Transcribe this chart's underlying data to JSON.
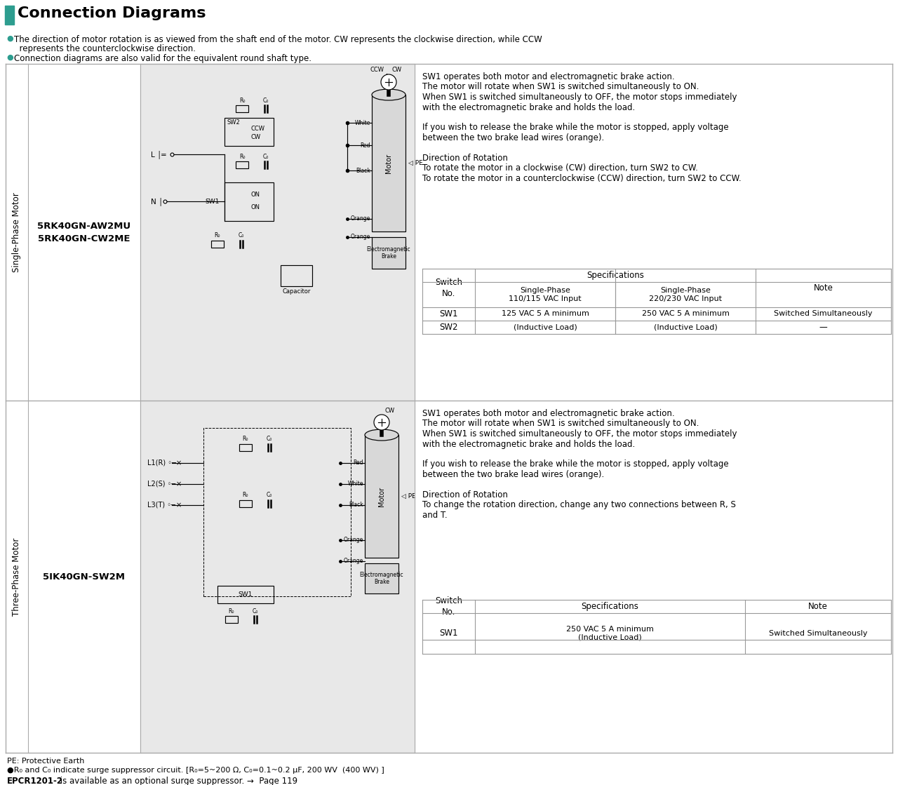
{
  "bg_color": "#ffffff",
  "border_color": "#aaaaaa",
  "teal_color": "#2d9d8f",
  "title": "Connection Diagrams",
  "header1a": "The direction of motor rotation is as viewed from the shaft end of the motor. CW represents the clockwise direction, while CCW",
  "header1b": "  represents the counterclockwise direction.",
  "header2": "Connection diagrams are also valid for the equivalent round shaft type.",
  "label1": "Single-Phase Motor",
  "label2": "Three-Phase Motor",
  "model1a": "5RK40GN-AW2MU",
  "model1b": "5RK40GN-CW2ME",
  "model2": "5IK40GN-SW2M",
  "desc1": [
    "SW1 operates both motor and electromagnetic brake action.",
    "The motor will rotate when SW1 is switched simultaneously to ON.",
    "When SW1 is switched simultaneously to OFF, the motor stops immediately",
    "with the electromagnetic brake and holds the load.",
    "",
    "If you wish to release the brake while the motor is stopped, apply voltage",
    "between the two brake lead wires (orange).",
    "",
    "Direction of Rotation",
    "To rotate the motor in a clockwise (CW) direction, turn SW2 to CW.",
    "To rotate the motor in a counterclockwise (CCW) direction, turn SW2 to CCW."
  ],
  "desc2": [
    "SW1 operates both motor and electromagnetic brake action.",
    "The motor will rotate when SW1 is switched simultaneously to ON.",
    "When SW1 is switched simultaneously to OFF, the motor stops immediately",
    "with the electromagnetic brake and holds the load.",
    "",
    "If you wish to release the brake while the motor is stopped, apply voltage",
    "between the two brake lead wires (orange).",
    "",
    "Direction of Rotation",
    "To change the rotation direction, change any two connections between R, S",
    "and T."
  ],
  "footer1": "PE: Protective Earth",
  "footer2": "●R₀ and C₀ indicate surge suppressor circuit. [R₀=5~200 Ω, C₀=0.1~0.2 μF, 200 WV  (400 WV) ]",
  "footer3a": "EPCR1201-2",
  "footer3b": " is available as an optional surge suppressor. →  Page 119",
  "gray_diag": "#e8e8e8",
  "table_border": "#999999",
  "tbl1_col1": "Switch\nNo.",
  "tbl1_spec": "Specifications",
  "tbl1_sub1": "Single-Phase\n110/115 VAC Input",
  "tbl1_sub2": "Single-Phase\n220/230 VAC Input",
  "tbl1_note": "Note",
  "tbl1_sw1_v1": "125 VAC 5 A minimum",
  "tbl1_sw1_v2": "250 VAC 5 A minimum",
  "tbl1_sw1_note": "Switched Simultaneously",
  "tbl1_sw2_v1": "(Inductive Load)",
  "tbl1_sw2_v2": "(Inductive Load)",
  "tbl1_sw2_note": "—",
  "tbl2_col1": "Switch\nNo.",
  "tbl2_spec": "Specifications",
  "tbl2_note": "Note",
  "tbl2_sw1_v": "250 VAC 5 A minimum\n(Inductive Load)",
  "tbl2_sw1_note": "Switched Simultaneously"
}
